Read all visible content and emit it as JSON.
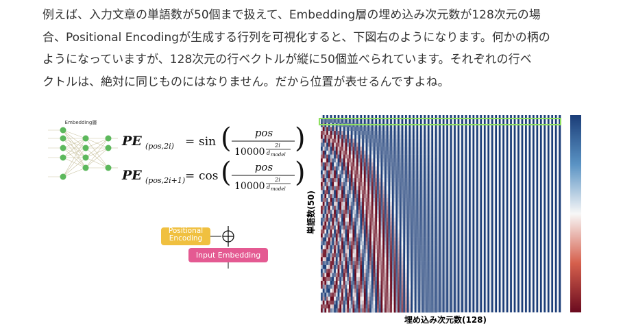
{
  "paragraph_lines": [
    "例えば、入力文章の単語数が50個まで扱えて、Embedding層の埋め込み次元数が128次元の場",
    "合、Positional Encodingが生成する行列を可視化すると、下図右のようになります。何かの柄の",
    "ようになっていますが、128次元の行ベクトルが縦に50個並べられています。それぞれの行ベ",
    "クトルは、絶対に同じものにはなりません。だから位置が表せるんですよね。"
  ],
  "figure": {
    "network_label": "Embedding層",
    "formula1": {
      "lhs": "PE",
      "sub": "(pos,2i)",
      "eq": "=",
      "fn": "sin",
      "num": "pos",
      "base": "10000",
      "exp_num": "2i",
      "exp_den": "d",
      "exp_den_sub": "model"
    },
    "formula2": {
      "lhs": "PE",
      "sub": "(pos,2i+1)",
      "eq": "=",
      "fn": "cos",
      "num": "pos",
      "base": "10000",
      "exp_num": "2i",
      "exp_den": "d",
      "exp_den_sub": "model"
    },
    "positional_encoding_label": "Positional Encoding",
    "input_embedding_label": "Input Embedding",
    "heatmap_ylabel": "単語数(50)",
    "heatmap_xlabel": "埋め込み次元数(128)"
  }
}
